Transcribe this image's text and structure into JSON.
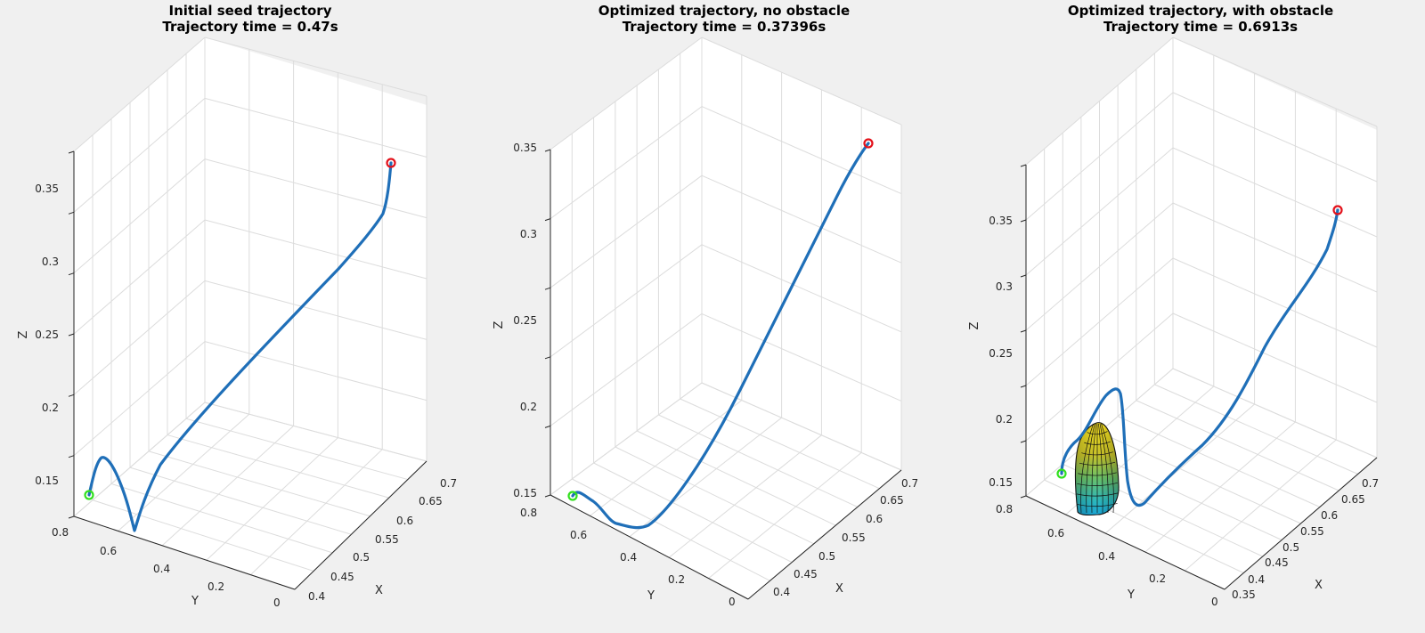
{
  "colors": {
    "trajectory": "#1f6fb8",
    "start_marker": "#33e01f",
    "end_marker": "#e3121b",
    "background": "#f0f0f0"
  },
  "chart_data": [
    {
      "type": "line3d",
      "title": [
        "Initial seed trajectory",
        "Trajectory time = 0.47s"
      ],
      "xlabel": "X",
      "ylabel": "Y",
      "zlabel": "Z",
      "x_ticks": [
        "0.4",
        "0.45",
        "0.5",
        "0.55",
        "0.6",
        "0.65",
        "0.7"
      ],
      "y_ticks": [
        "0.8",
        "0.6",
        "0.4",
        "0.2",
        "0"
      ],
      "z_ticks": [
        "0.15",
        "0.2",
        "0.25",
        "0.3",
        "0.35"
      ],
      "xlim": [
        0.4,
        0.7
      ],
      "ylim": [
        0,
        0.8
      ],
      "zlim": [
        0.135,
        0.375
      ],
      "grid": true,
      "trajectory": [
        {
          "x": 0.41,
          "y": 0.74,
          "z": 0.142
        },
        {
          "x": 0.41,
          "y": 0.71,
          "z": 0.158
        },
        {
          "x": 0.415,
          "y": 0.69,
          "z": 0.166
        },
        {
          "x": 0.42,
          "y": 0.665,
          "z": 0.162
        },
        {
          "x": 0.428,
          "y": 0.62,
          "z": 0.148
        },
        {
          "x": 0.43,
          "y": 0.58,
          "z": 0.136
        },
        {
          "x": 0.43,
          "y": 0.57,
          "z": 0.132
        },
        {
          "x": 0.44,
          "y": 0.54,
          "z": 0.145
        },
        {
          "x": 0.46,
          "y": 0.5,
          "z": 0.16
        },
        {
          "x": 0.5,
          "y": 0.43,
          "z": 0.18
        },
        {
          "x": 0.55,
          "y": 0.34,
          "z": 0.22
        },
        {
          "x": 0.6,
          "y": 0.25,
          "z": 0.265
        },
        {
          "x": 0.65,
          "y": 0.16,
          "z": 0.31
        },
        {
          "x": 0.68,
          "y": 0.1,
          "z": 0.345
        },
        {
          "x": 0.69,
          "y": 0.075,
          "z": 0.36
        },
        {
          "x": 0.69,
          "y": 0.065,
          "z": 0.368
        }
      ],
      "start": {
        "x": 0.41,
        "y": 0.74,
        "z": 0.142
      },
      "end": {
        "x": 0.69,
        "y": 0.065,
        "z": 0.368
      }
    },
    {
      "type": "line3d",
      "title": [
        "Optimized trajectory, no obstacle",
        "Trajectory time = 0.37396s"
      ],
      "xlabel": "X",
      "ylabel": "Y",
      "zlabel": "Z",
      "x_ticks": [
        "0.4",
        "0.45",
        "0.5",
        "0.55",
        "0.6",
        "0.65",
        "0.7"
      ],
      "y_ticks": [
        "0.8",
        "0.6",
        "0.4",
        "0.2",
        "0"
      ],
      "z_ticks": [
        "0.15",
        "0.2",
        "0.25",
        "0.3",
        "0.35"
      ],
      "xlim": [
        0.4,
        0.7
      ],
      "ylim": [
        0,
        0.8
      ],
      "zlim": [
        0.15,
        0.36
      ],
      "grid": true,
      "trajectory": [
        {
          "x": 0.41,
          "y": 0.74,
          "z": 0.15
        },
        {
          "x": 0.415,
          "y": 0.72,
          "z": 0.152
        },
        {
          "x": 0.43,
          "y": 0.67,
          "z": 0.15
        },
        {
          "x": 0.44,
          "y": 0.63,
          "z": 0.145
        },
        {
          "x": 0.455,
          "y": 0.58,
          "z": 0.142
        },
        {
          "x": 0.47,
          "y": 0.54,
          "z": 0.143
        },
        {
          "x": 0.5,
          "y": 0.47,
          "z": 0.16
        },
        {
          "x": 0.54,
          "y": 0.39,
          "z": 0.19
        },
        {
          "x": 0.58,
          "y": 0.3,
          "z": 0.23
        },
        {
          "x": 0.62,
          "y": 0.21,
          "z": 0.27
        },
        {
          "x": 0.66,
          "y": 0.13,
          "z": 0.31
        },
        {
          "x": 0.69,
          "y": 0.07,
          "z": 0.345
        },
        {
          "x": 0.7,
          "y": 0.05,
          "z": 0.353
        }
      ],
      "start": {
        "x": 0.41,
        "y": 0.74,
        "z": 0.15
      },
      "end": {
        "x": 0.7,
        "y": 0.05,
        "z": 0.353
      }
    },
    {
      "type": "line3d",
      "title": [
        "Optimized trajectory, with obstacle",
        "Trajectory time = 0.6913s"
      ],
      "xlabel": "X",
      "ylabel": "Y",
      "zlabel": "Z",
      "x_ticks": [
        "0.35",
        "0.4",
        "0.45",
        "0.5",
        "0.55",
        "0.6",
        "0.65",
        "0.7"
      ],
      "y_ticks": [
        "0.8",
        "0.6",
        "0.4",
        "0.2",
        "0"
      ],
      "z_ticks": [
        "0.15",
        "0.2",
        "0.25",
        "0.3",
        "0.35"
      ],
      "xlim": [
        0.35,
        0.72
      ],
      "ylim": [
        0,
        0.8
      ],
      "zlim": [
        0.143,
        0.39
      ],
      "grid": true,
      "trajectory": [
        {
          "x": 0.37,
          "y": 0.72,
          "z": 0.155
        },
        {
          "x": 0.38,
          "y": 0.7,
          "z": 0.175
        },
        {
          "x": 0.395,
          "y": 0.67,
          "z": 0.19
        },
        {
          "x": 0.41,
          "y": 0.63,
          "z": 0.205
        },
        {
          "x": 0.42,
          "y": 0.6,
          "z": 0.215
        },
        {
          "x": 0.425,
          "y": 0.58,
          "z": 0.215
        },
        {
          "x": 0.43,
          "y": 0.56,
          "z": 0.2
        },
        {
          "x": 0.435,
          "y": 0.54,
          "z": 0.165
        },
        {
          "x": 0.44,
          "y": 0.52,
          "z": 0.14
        },
        {
          "x": 0.45,
          "y": 0.5,
          "z": 0.133
        },
        {
          "x": 0.47,
          "y": 0.46,
          "z": 0.14
        },
        {
          "x": 0.5,
          "y": 0.4,
          "z": 0.16
        },
        {
          "x": 0.54,
          "y": 0.33,
          "z": 0.19
        },
        {
          "x": 0.58,
          "y": 0.25,
          "z": 0.23
        },
        {
          "x": 0.62,
          "y": 0.19,
          "z": 0.27
        },
        {
          "x": 0.66,
          "y": 0.13,
          "z": 0.3
        },
        {
          "x": 0.69,
          "y": 0.08,
          "z": 0.34
        },
        {
          "x": 0.7,
          "y": 0.06,
          "z": 0.355
        }
      ],
      "start": {
        "x": 0.37,
        "y": 0.72,
        "z": 0.155
      },
      "end": {
        "x": 0.7,
        "y": 0.06,
        "z": 0.355
      },
      "obstacle": {
        "shape": "ellipsoid",
        "colormap": "parula"
      }
    }
  ]
}
